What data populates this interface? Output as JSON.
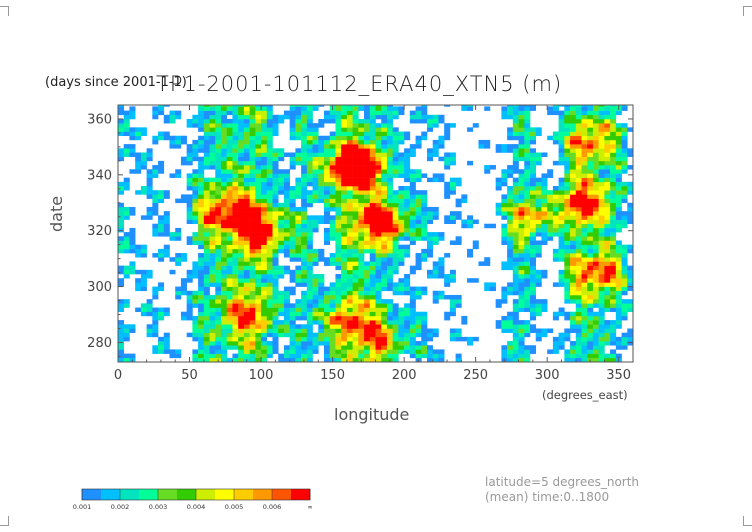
{
  "chart_data": {
    "type": "heatmap",
    "title": "TP1-2001-101112_ERA40_XTN5 (m)",
    "y_units_note": "(days since 2001-1-1)",
    "xlabel": "longitude",
    "x_units": "(degrees_east)",
    "ylabel": "date",
    "xlim": [
      0,
      360
    ],
    "ylim": [
      273,
      365
    ],
    "x_ticks": [
      0,
      50,
      100,
      150,
      200,
      250,
      300,
      350
    ],
    "y_ticks": [
      280,
      300,
      320,
      340,
      360
    ],
    "colorbar": {
      "levels": [
        "0.001",
        "0.002",
        "0.003",
        "0.004",
        "0.005",
        "0.006",
        "∞"
      ],
      "colors": [
        "#1e90ff",
        "#00bfff",
        "#00e5c0",
        "#00ff99",
        "#66dd22",
        "#33cc00",
        "#ccee00",
        "#ffff00",
        "#ffcc00",
        "#ff9900",
        "#ff5500",
        "#ff0000"
      ]
    },
    "annotations": [
      "latitude=5 degrees_north",
      "(mean) time:0..1800"
    ]
  }
}
